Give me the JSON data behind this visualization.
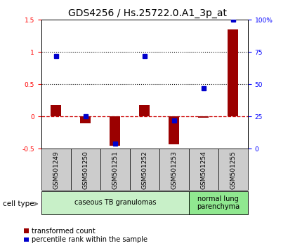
{
  "title": "GDS4256 / Hs.25722.0.A1_3p_at",
  "samples": [
    "GSM501249",
    "GSM501250",
    "GSM501251",
    "GSM501252",
    "GSM501253",
    "GSM501254",
    "GSM501255"
  ],
  "transformed_count": [
    0.18,
    -0.1,
    -0.45,
    0.18,
    -0.43,
    -0.02,
    1.35
  ],
  "percentile_rank_pct": [
    72,
    25,
    4,
    72,
    22,
    47,
    100
  ],
  "cell_type_groups": [
    {
      "label": "caseous TB granulomas",
      "start": 0,
      "end": 5,
      "color": "#c8f0c8"
    },
    {
      "label": "normal lung\nparenchyma",
      "start": 5,
      "end": 7,
      "color": "#90e890"
    }
  ],
  "ylim_left": [
    -0.5,
    1.5
  ],
  "ylim_right": [
    0,
    100
  ],
  "yticks_left": [
    -0.5,
    0.0,
    0.5,
    1.0,
    1.5
  ],
  "ytick_labels_left": [
    "-0.5",
    "0",
    "0.5",
    "1",
    "1.5"
  ],
  "yticks_right": [
    0,
    25,
    50,
    75,
    100
  ],
  "ytick_labels_right": [
    "0",
    "25",
    "50",
    "75",
    "100%"
  ],
  "hlines": [
    0.5,
    1.0
  ],
  "bar_color": "#9b0000",
  "dot_color": "#0000cc",
  "zero_line_color": "#cc0000",
  "tick_bg_color": "#cccccc",
  "title_fontsize": 10,
  "tick_fontsize": 6.5,
  "label_fontsize": 7.5,
  "legend_fontsize": 7
}
